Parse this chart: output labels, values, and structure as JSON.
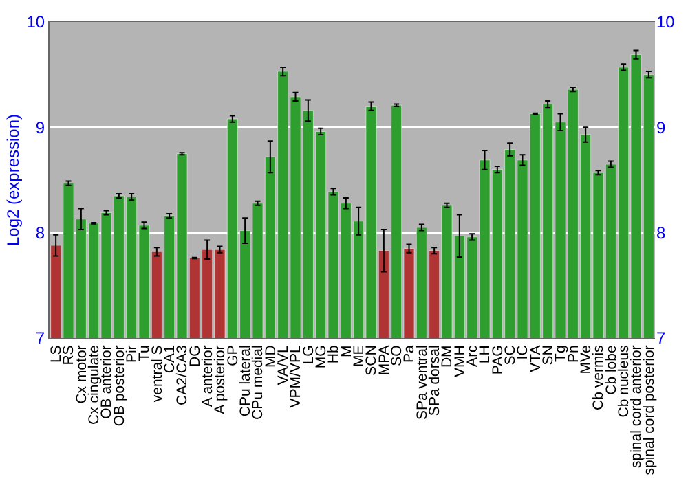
{
  "chart_data": {
    "type": "bar",
    "ylabel": "Log2 (expression)",
    "categories": [
      "LS",
      "RS",
      "Cx motor",
      "Cx cingulate",
      "OB anterior",
      "OB posterior",
      "Pir",
      "Tu",
      "ventral S",
      "CA1",
      "CA2/CA3",
      "DG",
      "A anterior",
      "A posterior",
      "GP",
      "CPu lateral",
      "CPu medial",
      "MD",
      "VA/VL",
      "VPM/VPL",
      "LG",
      "MG",
      "Hb",
      "M",
      "ME",
      "SCN",
      "MPA",
      "SO",
      "Pa",
      "SPa ventral",
      "SPa dorsal",
      "DM",
      "VMH",
      "Arc",
      "LH",
      "PAG",
      "SC",
      "IC",
      "VTA",
      "SN",
      "Tg",
      "Pn",
      "MVe",
      "Cb vermis",
      "Cb lobe",
      "Cb nucleus",
      "spinal cord anterior",
      "spinal cord posterior"
    ],
    "values": [
      7.88,
      8.47,
      8.13,
      8.09,
      8.19,
      8.35,
      8.34,
      8.07,
      7.82,
      8.16,
      8.75,
      7.76,
      7.84,
      7.84,
      9.08,
      8.02,
      8.28,
      8.72,
      9.53,
      9.29,
      9.16,
      8.96,
      8.39,
      8.28,
      8.11,
      9.2,
      7.83,
      9.21,
      7.85,
      8.05,
      7.83,
      8.26,
      7.97,
      7.96,
      8.69,
      8.6,
      8.79,
      8.69,
      9.13,
      9.22,
      9.05,
      9.36,
      8.93,
      8.57,
      8.65,
      9.57,
      9.69,
      9.5
    ],
    "errors": [
      0.1,
      0.02,
      0.1,
      0.005,
      0.02,
      0.02,
      0.03,
      0.03,
      0.04,
      0.02,
      0.01,
      0.005,
      0.09,
      0.03,
      0.03,
      0.12,
      0.02,
      0.15,
      0.04,
      0.04,
      0.1,
      0.03,
      0.03,
      0.05,
      0.13,
      0.04,
      0.2,
      0.01,
      0.04,
      0.03,
      0.03,
      0.02,
      0.2,
      0.03,
      0.09,
      0.03,
      0.06,
      0.05,
      0.005,
      0.03,
      0.08,
      0.02,
      0.07,
      0.02,
      0.03,
      0.03,
      0.04,
      0.03
    ],
    "colors": [
      "#b03434",
      "#2e9e2e",
      "#2e9e2e",
      "#2e9e2e",
      "#2e9e2e",
      "#2e9e2e",
      "#2e9e2e",
      "#2e9e2e",
      "#b03434",
      "#2e9e2e",
      "#2e9e2e",
      "#b03434",
      "#b03434",
      "#b03434",
      "#2e9e2e",
      "#2e9e2e",
      "#2e9e2e",
      "#2e9e2e",
      "#2e9e2e",
      "#2e9e2e",
      "#2e9e2e",
      "#2e9e2e",
      "#2e9e2e",
      "#2e9e2e",
      "#2e9e2e",
      "#2e9e2e",
      "#b03434",
      "#2e9e2e",
      "#b03434",
      "#2e9e2e",
      "#b03434",
      "#2e9e2e",
      "#2e9e2e",
      "#2e9e2e",
      "#2e9e2e",
      "#2e9e2e",
      "#2e9e2e",
      "#2e9e2e",
      "#2e9e2e",
      "#2e9e2e",
      "#2e9e2e",
      "#2e9e2e",
      "#2e9e2e",
      "#2e9e2e",
      "#2e9e2e",
      "#2e9e2e",
      "#2e9e2e",
      "#2e9e2e"
    ],
    "ylim": [
      7,
      10
    ],
    "yticks": [
      7,
      8,
      9,
      10
    ],
    "y2lim": [
      7,
      10
    ],
    "y2ticks": [
      7,
      8,
      9,
      10
    ],
    "grid": "y"
  }
}
